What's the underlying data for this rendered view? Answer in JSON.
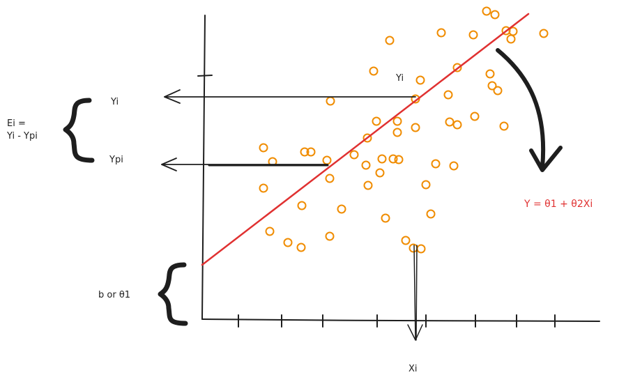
{
  "labels": {
    "residual_def_line1": "Ei =",
    "residual_def_line2": "Yi - Ypi",
    "observed": "Yi",
    "predicted": "Ypi",
    "observed_at_line": "Yi",
    "intercept": "b or θ1",
    "x_value": "Xi",
    "equation": "Y = θ1 + θ2Xi"
  },
  "colors": {
    "ink": "#1e1e1e",
    "regression_line": "#e03131",
    "data_points": "#f08c00",
    "background": "#ffffff"
  },
  "icons": {
    "curved_arrow": "curved-arrow-icon",
    "left_arrows": "arrow-left-icon",
    "down_arrow": "arrow-down-icon",
    "braces": "curly-brace-icon"
  }
}
